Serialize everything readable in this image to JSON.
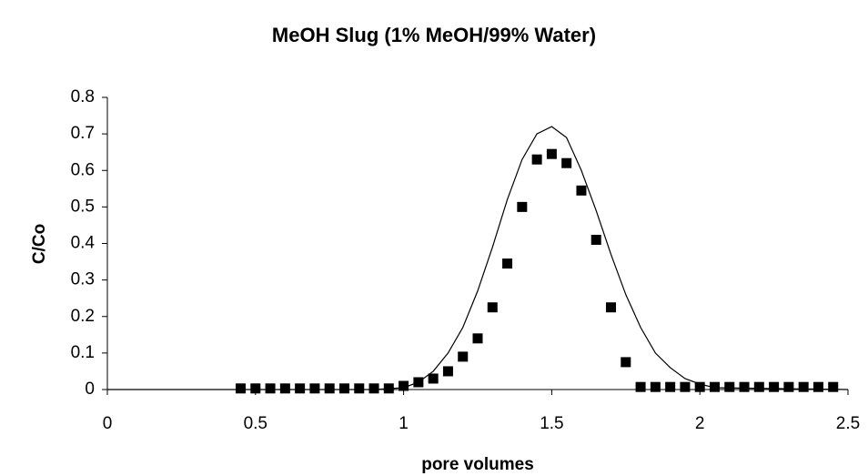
{
  "chart_data": {
    "type": "scatter",
    "title": "MeOH Slug (1% MeOH/99% Water)",
    "x_label": "pore volumes",
    "y_label": "C/Co",
    "xlim": [
      0,
      2.5
    ],
    "xticks": [
      0,
      0.5,
      1,
      1.5,
      2,
      2.5
    ],
    "ylim": [
      0,
      0.8
    ],
    "yticks": [
      0,
      0.1,
      0.2,
      0.3,
      0.4,
      0.5,
      0.6,
      0.7,
      0.8
    ],
    "series": [
      {
        "mode": "markers",
        "color": "#000000",
        "x": [
          0.45,
          0.5,
          0.55,
          0.6,
          0.65,
          0.7,
          0.75,
          0.8,
          0.85,
          0.9,
          0.95,
          1.0,
          1.05,
          1.1,
          1.15,
          1.2,
          1.25,
          1.3,
          1.35,
          1.4,
          1.45,
          1.5,
          1.55,
          1.6,
          1.65,
          1.7,
          1.75,
          1.8,
          1.85,
          1.9,
          1.95,
          2.0,
          2.05,
          2.1,
          2.15,
          2.2,
          2.25,
          2.3,
          2.35,
          2.4,
          2.45
        ],
        "values": [
          0.003,
          0.003,
          0.003,
          0.003,
          0.003,
          0.003,
          0.003,
          0.003,
          0.003,
          0.003,
          0.003,
          0.01,
          0.02,
          0.03,
          0.05,
          0.09,
          0.14,
          0.225,
          0.345,
          0.5,
          0.63,
          0.645,
          0.62,
          0.545,
          0.41,
          0.225,
          0.075,
          0.007,
          0.007,
          0.007,
          0.007,
          0.007,
          0.007,
          0.007,
          0.007,
          0.007,
          0.007,
          0.007,
          0.007,
          0.007,
          0.007
        ]
      },
      {
        "mode": "line",
        "color": "#000000",
        "x": [
          0,
          0.9,
          1.0,
          1.05,
          1.1,
          1.15,
          1.2,
          1.25,
          1.3,
          1.35,
          1.4,
          1.45,
          1.5,
          1.55,
          1.6,
          1.65,
          1.7,
          1.75,
          1.8,
          1.85,
          1.9,
          1.95,
          2.0,
          2.05,
          2.5
        ],
        "values": [
          0,
          0,
          0.005,
          0.02,
          0.05,
          0.1,
          0.17,
          0.27,
          0.39,
          0.52,
          0.63,
          0.7,
          0.72,
          0.69,
          0.6,
          0.49,
          0.37,
          0.26,
          0.17,
          0.1,
          0.06,
          0.03,
          0.015,
          0.005,
          0
        ]
      }
    ]
  }
}
